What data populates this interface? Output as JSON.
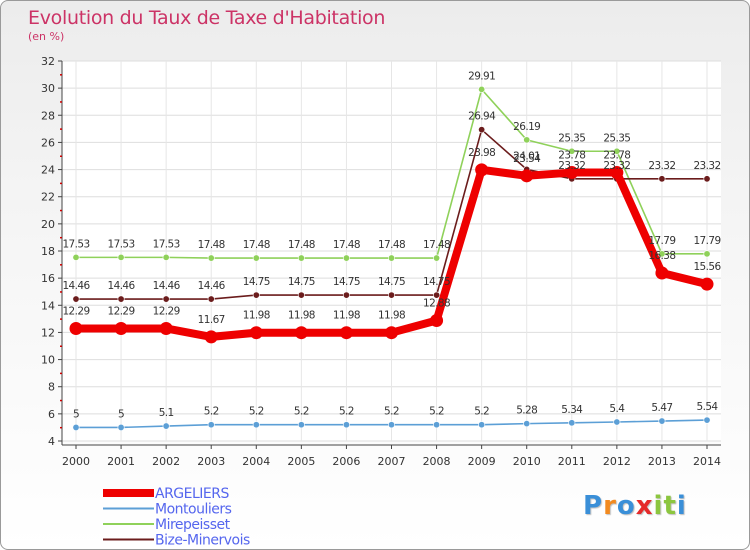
{
  "colors": {
    "argeliers": "#ee0000",
    "montouliers": "#5c9fd6",
    "mirepeisset": "#8fd15a",
    "bize": "#6b1c1c",
    "title": "#cc3366",
    "legend_text": "#5566ee"
  },
  "logo": {
    "text": "Proxiti",
    "letters": [
      "P",
      "r",
      "o",
      "x",
      "i",
      "t",
      "i"
    ],
    "letter_colors": [
      "#3a8fd8",
      "#f28a1f",
      "#3a8fd8",
      "#e52a2a",
      "#8cc63f",
      "#8cc63f",
      "#3a8fd8"
    ]
  },
  "chart_data": {
    "type": "line",
    "title": "Evolution du Taux de Taxe d'Habitation",
    "subtitle": "(en %)",
    "xlabel": "",
    "ylabel": "",
    "ylim": [
      4,
      32
    ],
    "yticks": [
      4,
      6,
      8,
      10,
      12,
      14,
      16,
      18,
      20,
      22,
      24,
      26,
      28,
      30,
      32
    ],
    "grid": true,
    "legend_position": "bottom-left",
    "categories": [
      "2000",
      "2001",
      "2002",
      "2003",
      "2004",
      "2005",
      "2006",
      "2007",
      "2008",
      "2009",
      "2010",
      "2011",
      "2012",
      "2013",
      "2014"
    ],
    "series": [
      {
        "name": "Montouliers",
        "color_key": "montouliers",
        "values": [
          5,
          5,
          5.1,
          5.2,
          5.2,
          5.2,
          5.2,
          5.2,
          5.2,
          5.2,
          5.28,
          5.34,
          5.4,
          5.47,
          5.54
        ],
        "labels": [
          "5",
          "5",
          "5.1",
          "5.2",
          "5.2",
          "5.2",
          "5.2",
          "5.2",
          "5.2",
          "5.2",
          "5.28",
          "5.34",
          "5.4",
          "5.47",
          "5.54"
        ]
      },
      {
        "name": "Mirepeisset",
        "color_key": "mirepeisset",
        "values": [
          17.53,
          17.53,
          17.53,
          17.48,
          17.48,
          17.48,
          17.48,
          17.48,
          17.48,
          29.91,
          26.19,
          25.35,
          25.35,
          17.79,
          17.79
        ],
        "labels": [
          "17.53",
          "17.53",
          "17.53",
          "17.48",
          "17.48",
          "17.48",
          "17.48",
          "17.48",
          "17.48",
          "29.91",
          "26.19",
          "25.35",
          "25.35",
          "17.79",
          "17.79"
        ]
      },
      {
        "name": "Bize-Minervois",
        "color_key": "bize",
        "values": [
          14.46,
          14.46,
          14.46,
          14.46,
          14.75,
          14.75,
          14.75,
          14.75,
          14.75,
          26.94,
          24.01,
          23.32,
          23.32,
          23.32,
          23.32
        ],
        "labels": [
          "14.46",
          "14.46",
          "14.46",
          "14.46",
          "14.75",
          "14.75",
          "14.75",
          "14.75",
          "14.75",
          "26.94",
          "24.01",
          "23.32",
          "23.32",
          "23.32",
          "23.32"
        ]
      },
      {
        "name": "ARGELIERS",
        "color_key": "argeliers",
        "values": [
          12.29,
          12.29,
          12.29,
          11.67,
          11.98,
          11.98,
          11.98,
          11.98,
          12.88,
          23.98,
          23.54,
          23.78,
          23.78,
          16.38,
          15.56
        ],
        "labels": [
          "12.29",
          "12.29",
          "12.29",
          "11.67",
          "11.98",
          "11.98",
          "11.98",
          "11.98",
          "12.88",
          "23.98",
          "23.54",
          "23.78",
          "23.78",
          "16.38",
          "15.56"
        ]
      }
    ],
    "legend": [
      "ARGELIERS",
      "Montouliers",
      "Mirepeisset",
      "Bize-Minervois"
    ]
  }
}
